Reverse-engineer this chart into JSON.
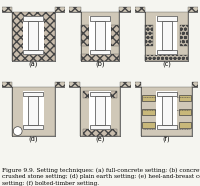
{
  "fig_width": 2.0,
  "fig_height": 1.86,
  "dpi": 100,
  "background_color": "#f5f5f0",
  "caption": "Figure 9.9. Setting techniques: (a) full-concrete setting; (b) concrete setting; (c)\ncrushed stone setting; (d) plain earth setting; (e) heel-and-breast concrete blocks\nsetting; (f) bolted-timber setting.",
  "caption_fontsize": 4.2,
  "subfig_labels": [
    "(a)",
    "(b)",
    "(c)",
    "(d)",
    "(e)",
    "(f)"
  ],
  "label_fontsize": 4.8,
  "pipe_fill": "#f8f8f8",
  "pipe_line": "#444444",
  "ground_color": "#d0c8b8",
  "concrete_color": "#c8bcac",
  "stone_dot_color": "#c0b8aa",
  "timber_color": "#c8b87a",
  "line_width": 0.5,
  "soil_hatch": "xxxx",
  "concrete_hatch": "xxxx",
  "stone_hatch": "oooo"
}
